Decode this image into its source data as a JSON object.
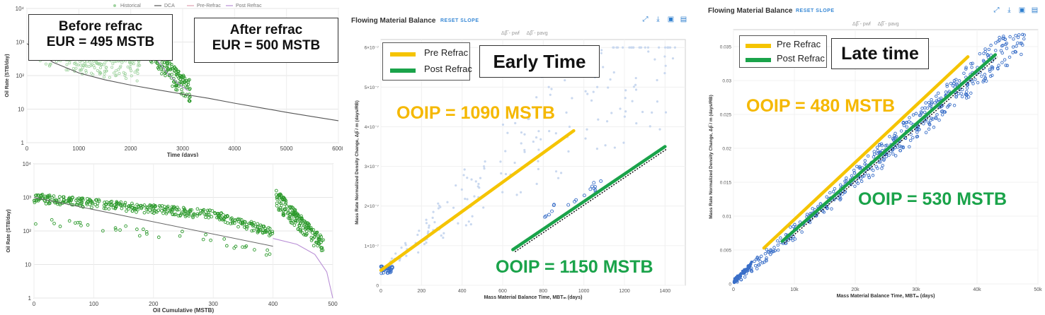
{
  "colors": {
    "dca": "#555555",
    "historical": "#9fd39f",
    "green_pts": "#2e9a2e",
    "pre_refrac": "#f5c400",
    "post_refrac": "#1aa34a",
    "fmb_points": "#3a6fc8",
    "fmb_faint": "#c9d8ef",
    "link": "#3a8ad6",
    "post_refrac_curve": "#b98fd6"
  },
  "left": {
    "legend": [
      "Historical",
      "DCA",
      "Pre-Refrac",
      "Post Refrac"
    ],
    "callout_before": [
      "Before refrac",
      "EUR = 495 MSTB"
    ],
    "callout_after": [
      "After refrac",
      "EUR = 500 MSTB"
    ]
  },
  "fmb_early": {
    "title": "Flowing Material Balance",
    "reset": "RESET SLOPE",
    "mini_legend": [
      "Δβ̅ - pwf",
      "Δβ̅ - pavg"
    ],
    "legend": [
      "Pre Refrac",
      "Post Refrac"
    ],
    "box_label": "Early Time",
    "ooip_pre": "OOIP = 1090 MSTB",
    "ooip_post": "OOIP = 1150 MSTB"
  },
  "fmb_late": {
    "title": "Flowing Material Balance",
    "reset": "RESET SLOPE",
    "mini_legend": [
      "Δβ̅ - pwf",
      "Δβ̅ - pavg"
    ],
    "legend": [
      "Pre Refrac",
      "Post Refrac"
    ],
    "box_label": "Late time",
    "ooip_pre": "OOIP = 480 MSTB",
    "ooip_post": "OOIP = 530 MSTB"
  },
  "toolbar_icons": [
    "expand-icon",
    "download-icon",
    "image-icon",
    "save-icon"
  ],
  "chart_data": [
    {
      "id": "rate-time",
      "type": "scatter",
      "title": "",
      "xlabel": "Time (days)",
      "ylabel": "Oil Rate (STB/day)",
      "xlim": [
        0,
        6000
      ],
      "ylim_log": [
        1,
        10000
      ],
      "x_ticks": [
        "0",
        "1000",
        "2000",
        "3000",
        "4000",
        "5000",
        "6000"
      ],
      "y_ticks": [
        "1",
        "10",
        "10²",
        "10³",
        "10⁴"
      ],
      "y_minor_labels": [
        "2",
        "5",
        "2",
        "5",
        "2",
        "5"
      ],
      "legend_position": "top-center",
      "series": [
        {
          "name": "DCA",
          "x": [
            0,
            500,
            1000,
            1500,
            2000,
            2500,
            3000,
            3500,
            4000,
            4500,
            5000,
            5500,
            6000
          ],
          "y": [
            900,
            250,
            120,
            75,
            52,
            38,
            28,
            21,
            15,
            11,
            8,
            6,
            4.5
          ]
        },
        {
          "name": "Historical",
          "x": [
            100,
            300,
            500,
            800,
            1100,
            1400,
            1700,
            2000,
            2200
          ],
          "y": [
            600,
            250,
            180,
            130,
            100,
            85,
            75,
            60,
            55
          ]
        },
        {
          "name": "Pre-Refrac",
          "x": [
            0,
            2200
          ],
          "y": [
            600,
            55
          ]
        },
        {
          "name": "Post Refrac",
          "x": [
            2300,
            2500,
            2700,
            2900,
            3100
          ],
          "y": [
            800,
            300,
            120,
            60,
            35
          ]
        }
      ]
    },
    {
      "id": "rate-cumulative",
      "type": "scatter",
      "title": "",
      "xlabel": "Oil Cumulative (MSTB)",
      "ylabel": "Oil Rate (STB/day)",
      "xlim": [
        0,
        500
      ],
      "ylim_log": [
        1,
        10000
      ],
      "x_ticks": [
        "0",
        "100",
        "200",
        "300",
        "400",
        "500"
      ],
      "y_ticks": [
        "1",
        "10",
        "10²",
        "10³",
        "10⁴"
      ],
      "series": [
        {
          "name": "Historical",
          "x": [
            0,
            50,
            100,
            150,
            200,
            250,
            300,
            350,
            400
          ],
          "y": [
            1000,
            850,
            700,
            550,
            480,
            330,
            200,
            100,
            40
          ]
        },
        {
          "name": "Post Refrac",
          "x": [
            410,
            430,
            450,
            470,
            480
          ],
          "y": [
            900,
            500,
            250,
            100,
            30
          ]
        },
        {
          "name": "DCA",
          "x": [
            400,
            440,
            470,
            490,
            500
          ],
          "y": [
            60,
            40,
            20,
            6,
            1
          ]
        }
      ]
    },
    {
      "id": "fmb-early",
      "type": "scatter",
      "title": "Flowing Material Balance",
      "xlabel": "Mass Material Balance Time, MBTₘ (days)",
      "ylabel": "Mass Rate Normalized Density Change, Δβ̅ / m (days/RB)",
      "xlim": [
        0,
        1500
      ],
      "ylim": [
        0,
        6.2e-07
      ],
      "x_ticks": [
        "0",
        "200",
        "400",
        "600",
        "800",
        "1000",
        "1200",
        "1400"
      ],
      "y_ticks": [
        "0",
        "1×10⁻⁷",
        "2×10⁻⁷",
        "3×10⁻⁷",
        "4×10⁻⁷",
        "5×10⁻⁷",
        "6×10⁻⁷"
      ],
      "series": [
        {
          "name": "Pre Refrac",
          "x": [
            0,
            950
          ],
          "y": [
            3.8e-08,
            3.9e-07
          ]
        },
        {
          "name": "Post Refrac",
          "x": [
            650,
            1400
          ],
          "y": [
            9e-08,
            3.5e-07
          ]
        }
      ]
    },
    {
      "id": "fmb-late",
      "type": "scatter",
      "title": "Flowing Material Balance",
      "xlabel": "Mass Material Balance Time, MBTₘ (days)",
      "ylabel": "Mass Rate Normalized Density Change, Δβ̅ / m (days/RB)",
      "xlim": [
        0,
        50000
      ],
      "ylim": [
        0,
        0.0375
      ],
      "x_ticks": [
        "0",
        "10k",
        "20k",
        "30k",
        "40k",
        "50k"
      ],
      "y_ticks": [
        "0",
        "0.005",
        "0.01",
        "0.015",
        "0.02",
        "0.025",
        "0.03",
        "0.035"
      ],
      "series": [
        {
          "name": "Pre Refrac",
          "x": [
            5000,
            38500
          ],
          "y": [
            0.0053,
            0.0335
          ]
        },
        {
          "name": "Post Refrac",
          "x": [
            8000,
            43000
          ],
          "y": [
            0.0063,
            0.0338
          ]
        }
      ]
    }
  ]
}
